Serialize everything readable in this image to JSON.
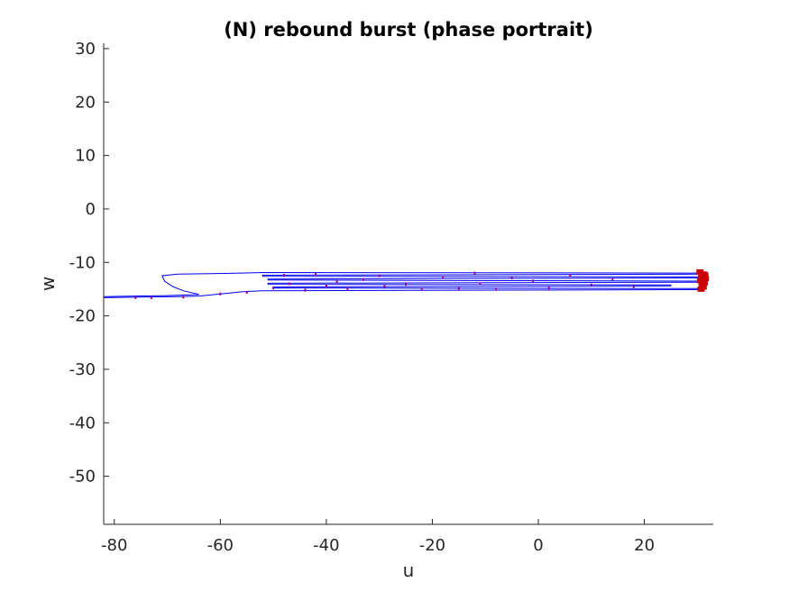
{
  "chart_data": {
    "type": "line",
    "title": "(N) rebound burst (phase portrait)",
    "xlabel": "u",
    "ylabel": "w",
    "xlim": [
      -82,
      33
    ],
    "ylim": [
      -59,
      31
    ],
    "xticks": [
      -80,
      -60,
      -40,
      -20,
      0,
      20
    ],
    "yticks": [
      -50,
      -40,
      -30,
      -20,
      -10,
      0,
      10,
      20,
      30
    ],
    "grid": false,
    "colors": {
      "trace": "#0000ee",
      "spike": "#ff0000",
      "marker": "#990099"
    },
    "series": [
      {
        "values": [
          [
            -82,
            -16.6
          ],
          [
            -75,
            -16.5
          ],
          [
            -68,
            -16.4
          ],
          [
            -64,
            -16.3
          ],
          [
            -62,
            -16.1
          ],
          [
            -60,
            -15.9
          ],
          [
            -58,
            -15.7
          ],
          [
            -56,
            -15.5
          ],
          [
            -54,
            -15.4
          ],
          [
            -52,
            -15.3
          ],
          [
            30,
            -15.1
          ],
          [
            30,
            -14.9
          ],
          [
            -50,
            -14.8
          ],
          [
            -50,
            -14.6
          ],
          [
            25,
            -14.4
          ],
          [
            25,
            -14.2
          ],
          [
            -51,
            -14.1
          ],
          [
            -51,
            -13.9
          ],
          [
            30,
            -13.7
          ],
          [
            30,
            -13.5
          ],
          [
            -51,
            -13.3
          ],
          [
            -51,
            -13.1
          ],
          [
            30,
            -12.9
          ],
          [
            30,
            -12.7
          ],
          [
            -52,
            -12.6
          ],
          [
            -52,
            -12.4
          ],
          [
            30,
            -12.2
          ],
          [
            30,
            -12.0
          ],
          [
            -52,
            -11.9
          ],
          [
            -56,
            -12.0
          ],
          [
            -62,
            -12.1
          ],
          [
            -68,
            -12.2
          ],
          [
            -71,
            -12.5
          ],
          [
            -70.5,
            -13.5
          ],
          [
            -69,
            -14.5
          ],
          [
            -67,
            -15.3
          ],
          [
            -64,
            -16.0
          ],
          [
            -70,
            -16.2
          ],
          [
            -76,
            -16.3
          ],
          [
            -82,
            -16.4
          ]
        ]
      }
    ],
    "spikes": [
      [
        30.5,
        -11.8
      ],
      [
        31.2,
        -12.2
      ],
      [
        30.8,
        -12.6
      ],
      [
        31.5,
        -13.0
      ],
      [
        30.6,
        -13.4
      ],
      [
        31.3,
        -13.8
      ],
      [
        30.9,
        -14.2
      ],
      [
        31.1,
        -14.6
      ],
      [
        30.7,
        -15.0
      ],
      [
        31.4,
        -12.4
      ]
    ],
    "markers": [
      [
        -76,
        -16.6
      ],
      [
        -73,
        -16.6
      ],
      [
        -67,
        -16.5
      ],
      [
        -60,
        -15.9
      ],
      [
        -55,
        -15.6
      ],
      [
        -50,
        -14.8
      ],
      [
        -47,
        -14.0
      ],
      [
        -44,
        -15.2
      ],
      [
        -40,
        -14.4
      ],
      [
        -36,
        -15.0
      ],
      [
        -33,
        -13.2
      ],
      [
        -29,
        -14.5
      ],
      [
        -25,
        -14.1
      ],
      [
        -22,
        -15.0
      ],
      [
        -18,
        -12.8
      ],
      [
        -15,
        -14.9
      ],
      [
        -11,
        -14.0
      ],
      [
        -8,
        -15.0
      ],
      [
        -5,
        -12.9
      ],
      [
        -1,
        -13.5
      ],
      [
        2,
        -14.8
      ],
      [
        6,
        -12.5
      ],
      [
        10,
        -14.2
      ],
      [
        14,
        -13.1
      ],
      [
        18,
        -14.5
      ],
      [
        -48,
        -12.4
      ],
      [
        -42,
        -12.2
      ],
      [
        -38,
        -13.6
      ],
      [
        -30,
        -12.5
      ],
      [
        -12,
        -12.0
      ]
    ]
  }
}
